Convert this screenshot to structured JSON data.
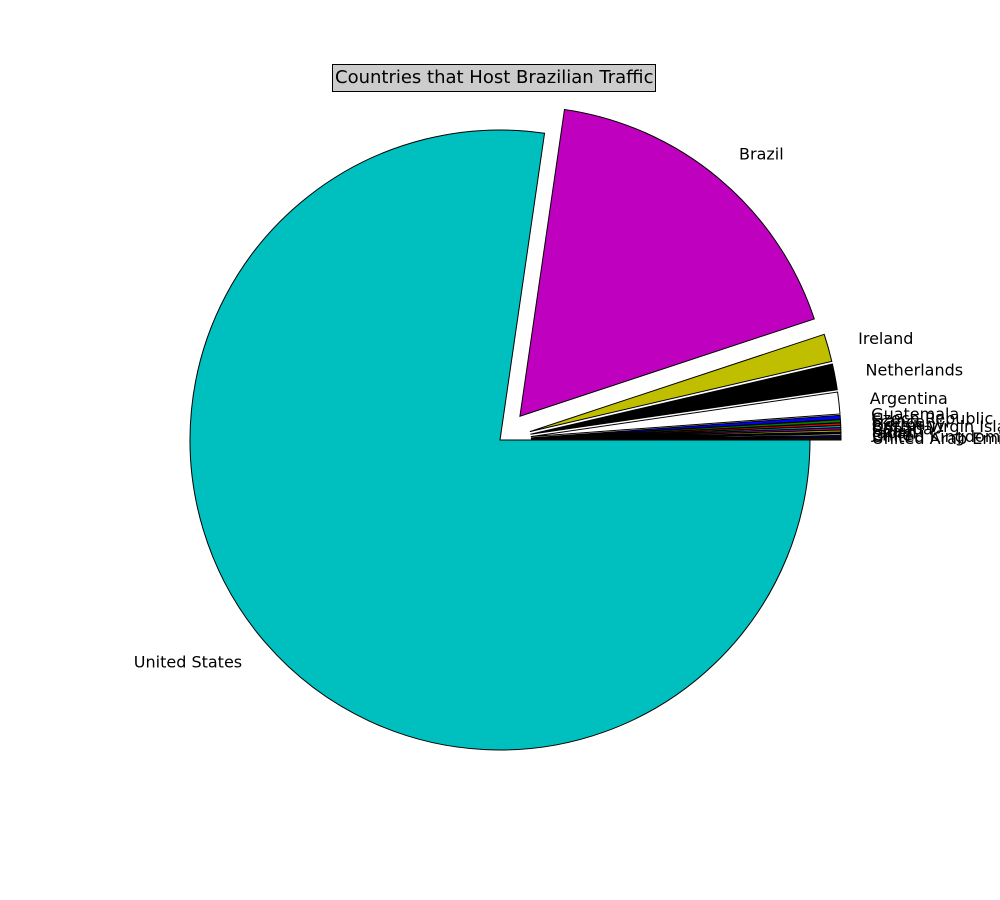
{
  "chart_data": {
    "type": "pie",
    "title": "Countries that Host Brazilian Traffic",
    "slices": [
      {
        "label": "United States",
        "value": 75.0,
        "color": "#00bfbf"
      },
      {
        "label": "Brazil",
        "value": 17.1,
        "color": "#bf00bf"
      },
      {
        "label": "Ireland",
        "value": 1.4,
        "color": "#bfbf00"
      },
      {
        "label": "Netherlands",
        "value": 1.3,
        "color": "#000000"
      },
      {
        "label": "Argentina",
        "value": 1.1,
        "color": "#ffffff"
      },
      {
        "label": "Guatemala",
        "value": 0.2,
        "color": "#0000ff"
      },
      {
        "label": "Czech Republic",
        "value": 0.15,
        "color": "#008000"
      },
      {
        "label": "France",
        "value": 0.12,
        "color": "#ff0000"
      },
      {
        "label": "Germany",
        "value": 0.1,
        "color": "#00bfbf"
      },
      {
        "label": "British Virgin Islands",
        "value": 0.1,
        "color": "#bf00bf"
      },
      {
        "label": "Canada",
        "value": 0.1,
        "color": "#bfbf00"
      },
      {
        "label": "Spain",
        "value": 0.08,
        "color": "#000000"
      },
      {
        "label": "Japan",
        "value": 0.08,
        "color": "#ffffff"
      },
      {
        "label": "Chile",
        "value": 0.07,
        "color": "#0000ff"
      },
      {
        "label": "United Kingdom",
        "value": 0.07,
        "color": "#008000"
      },
      {
        "label": "United Arab Emirates",
        "value": 0.06,
        "color": "#ff0000"
      }
    ],
    "explode": 0.1,
    "startangle": 0,
    "legend": "none"
  }
}
